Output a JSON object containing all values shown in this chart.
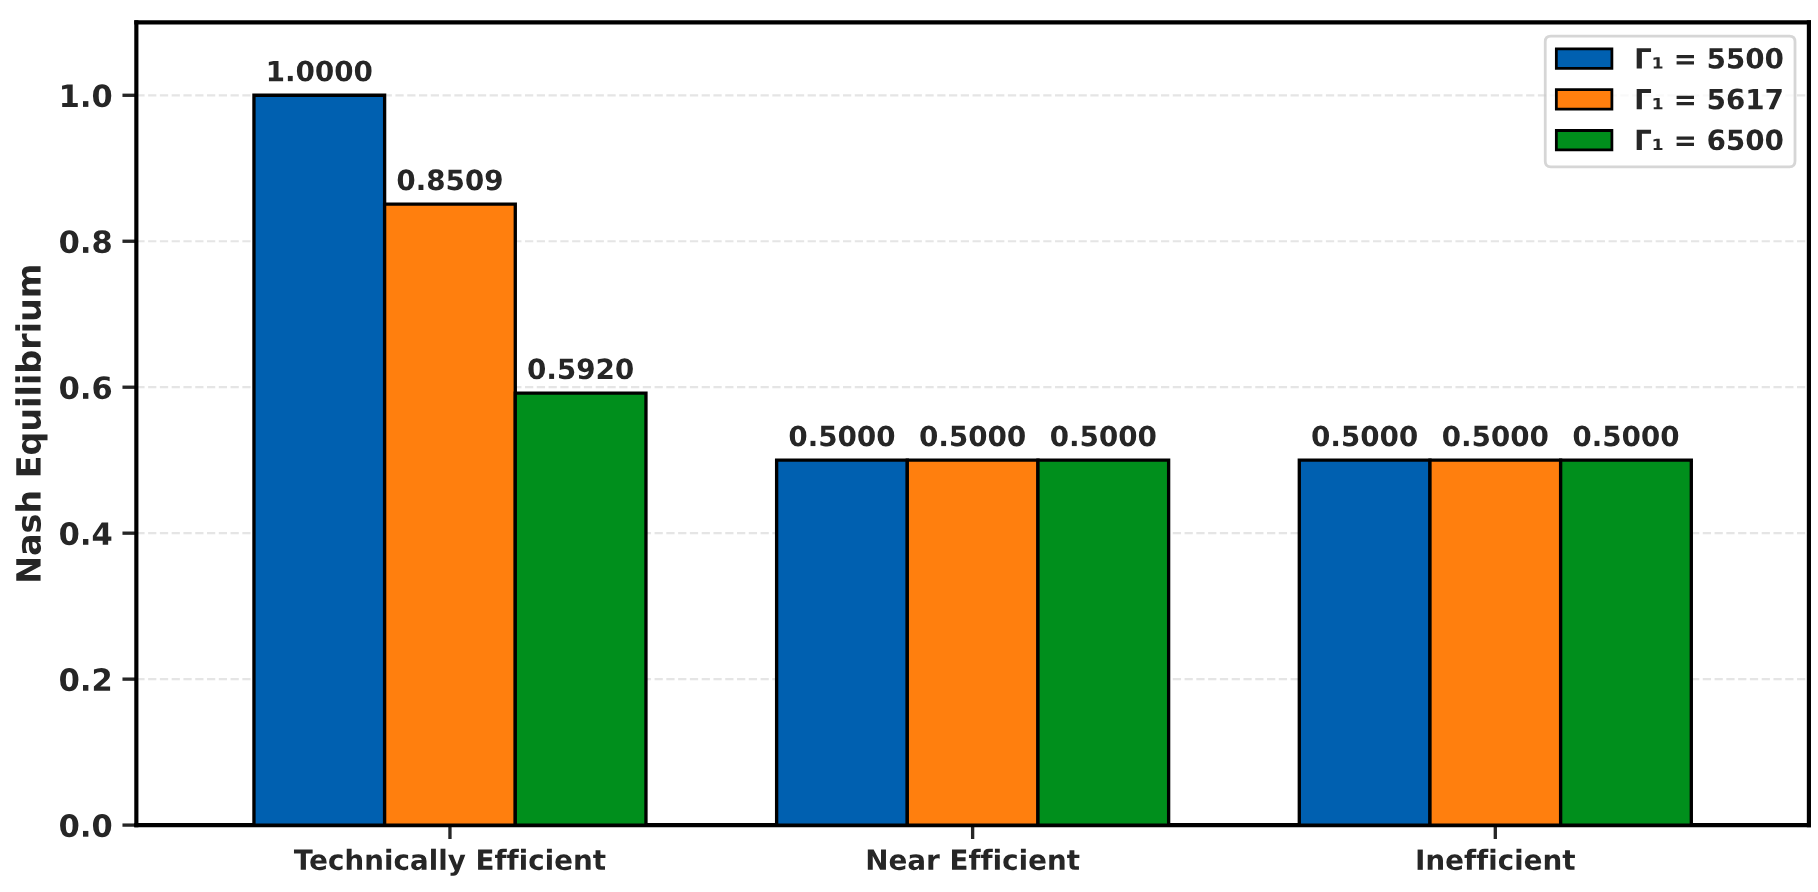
{
  "chart_data": {
    "type": "bar",
    "ylabel": "Nash Equilibrium",
    "categories": [
      "Technically Efficient",
      "Near Efficient",
      "Inefficient"
    ],
    "series": [
      {
        "name": "Γ₁ = 5500",
        "color": "#0060b0",
        "values": [
          1.0,
          0.5,
          0.5
        ]
      },
      {
        "name": "Γ₁ = 5617",
        "color": "#ff7f0e",
        "values": [
          0.8509,
          0.5,
          0.5
        ]
      },
      {
        "name": "Γ₁ = 6500",
        "color": "#008f1c",
        "values": [
          0.592,
          0.5,
          0.5
        ]
      }
    ],
    "value_labels": [
      [
        "1.0000",
        "0.5000",
        "0.5000"
      ],
      [
        "0.8509",
        "0.5000",
        "0.5000"
      ],
      [
        "0.5920",
        "0.5000",
        "0.5000"
      ]
    ],
    "ylim": [
      0,
      1.1
    ],
    "yticks": [
      {
        "value": 0,
        "label": "0.0"
      },
      {
        "value": 0.2,
        "label": "0.2"
      },
      {
        "value": 0.4,
        "label": "0.4"
      },
      {
        "value": 0.6,
        "label": "0.6"
      },
      {
        "value": 0.8,
        "label": "0.8"
      },
      {
        "value": 1.0,
        "label": "1.0"
      }
    ],
    "grid": "y",
    "legend": "top right"
  }
}
